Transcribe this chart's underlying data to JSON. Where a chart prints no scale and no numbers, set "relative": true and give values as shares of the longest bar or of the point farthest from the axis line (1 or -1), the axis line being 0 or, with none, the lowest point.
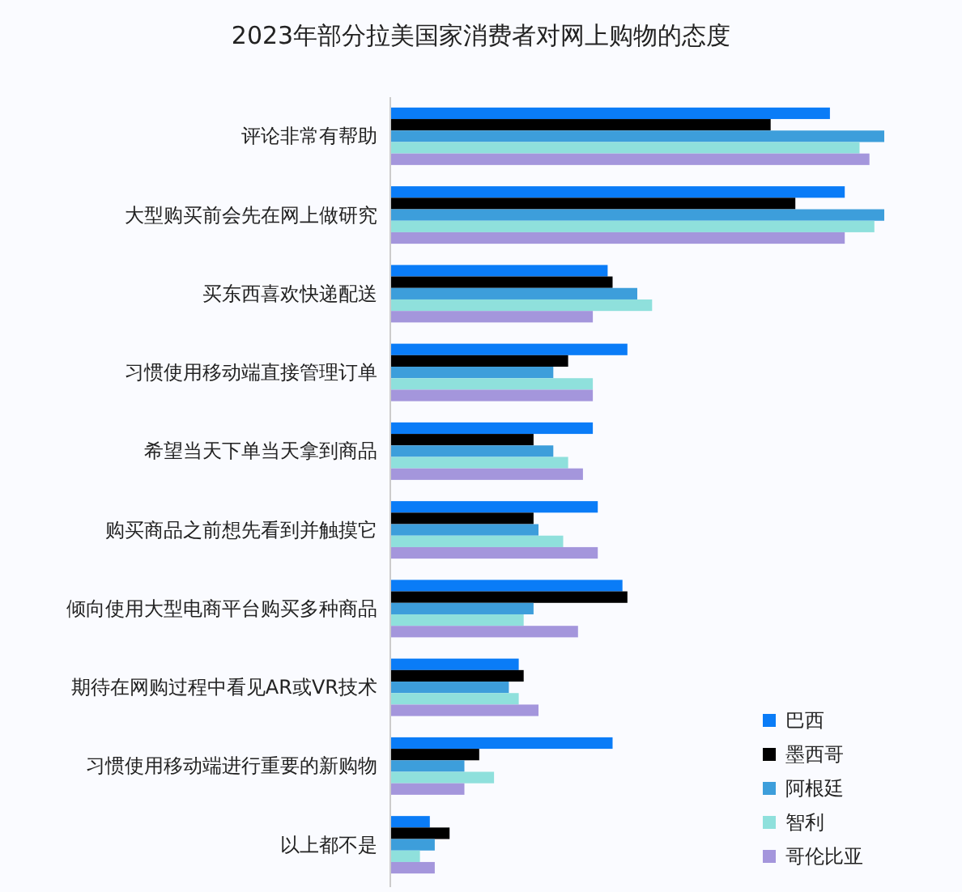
{
  "chart_data": {
    "type": "bar",
    "orientation": "horizontal",
    "relative": true,
    "title": "2023年部分拉美国家消费者对网上购物的态度",
    "categories": [
      "评论非常有帮助",
      "大型购买前会先在网上做研究",
      "买东西喜欢快递配送",
      "习惯使用移动端直接管理订单",
      "希望当天下单当天拿到商品",
      "购买商品之前想先看到并触摸它",
      "倾向使用大型电商平台购买多种商品",
      "期待在网购过程中看见AR或VR技术",
      "习惯使用移动端进行重要的新购物",
      "以上都不是"
    ],
    "series": [
      {
        "name": "巴西",
        "color": "#0a7cf7",
        "values": [
          0.89,
          0.92,
          0.44,
          0.48,
          0.41,
          0.42,
          0.47,
          0.26,
          0.45,
          0.08
        ]
      },
      {
        "name": "墨西哥",
        "color": "#000000",
        "values": [
          0.77,
          0.82,
          0.45,
          0.36,
          0.29,
          0.29,
          0.48,
          0.27,
          0.18,
          0.12
        ]
      },
      {
        "name": "阿根廷",
        "color": "#3d9edb",
        "values": [
          1,
          1,
          0.5,
          0.33,
          0.33,
          0.3,
          0.29,
          0.24,
          0.15,
          0.09
        ]
      },
      {
        "name": "智利",
        "color": "#8fe0dc",
        "values": [
          0.95,
          0.98,
          0.53,
          0.41,
          0.36,
          0.35,
          0.27,
          0.26,
          0.21,
          0.06
        ]
      },
      {
        "name": "哥伦比亚",
        "color": "#a496dc",
        "values": [
          0.97,
          0.92,
          0.41,
          0.41,
          0.39,
          0.42,
          0.38,
          0.3,
          0.15,
          0.09
        ]
      }
    ],
    "legend": "bottom right"
  }
}
